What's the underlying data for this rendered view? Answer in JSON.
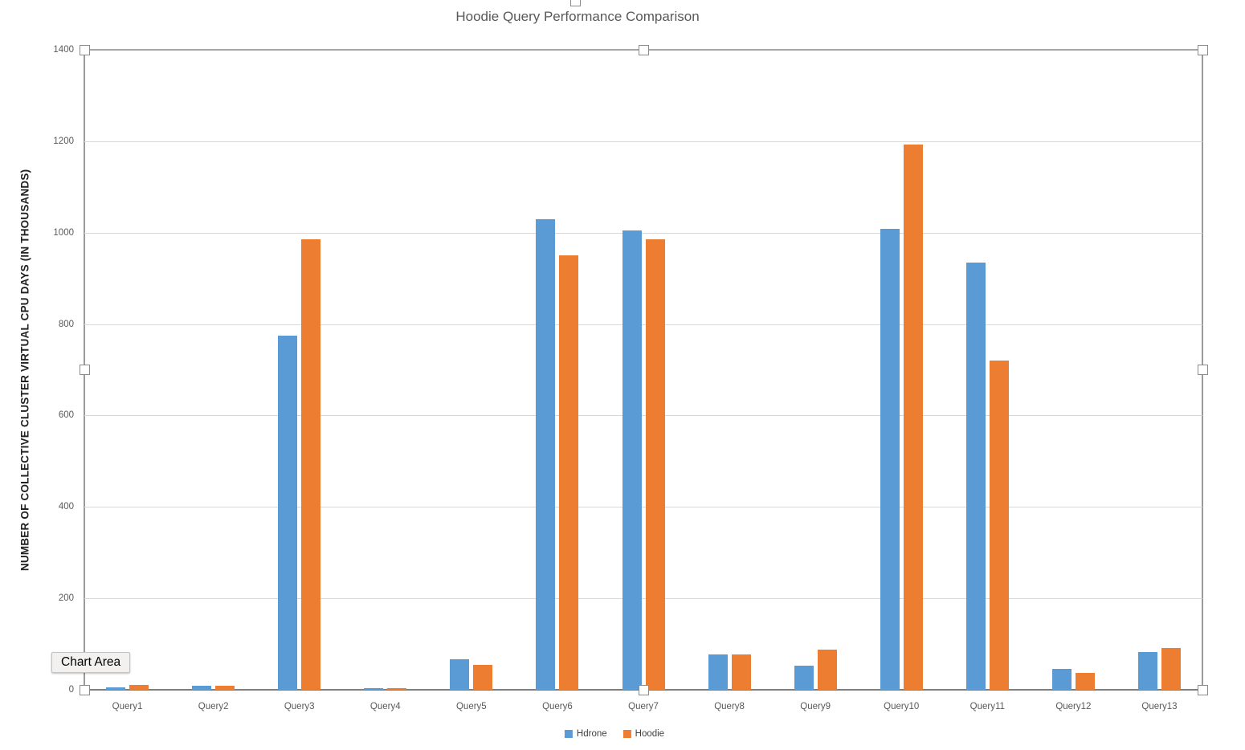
{
  "chart_title": "Hoodie Query Performance Comparison",
  "tooltip_text": "Chart Area",
  "chart_data": {
    "type": "bar",
    "title": "Hoodie Query Performance Comparison",
    "xlabel": "",
    "ylabel": "NUMBER OF COLLECTIVE CLUSTER VIRTUAL CPU DAYS (IN THOUSANDS)",
    "categories": [
      "Query1",
      "Query2",
      "Query3",
      "Query4",
      "Query5",
      "Query6",
      "Query7",
      "Query8",
      "Query9",
      "Query10",
      "Query11",
      "Query12",
      "Query13"
    ],
    "series": [
      {
        "name": "Hdrone",
        "color": "#5B9BD5",
        "values": [
          6,
          9,
          775,
          4,
          66,
          1030,
          1005,
          77,
          52,
          1008,
          935,
          45,
          83
        ]
      },
      {
        "name": "Hoodie",
        "color": "#ED7D31",
        "values": [
          10,
          9,
          985,
          4,
          54,
          950,
          985,
          77,
          88,
          1193,
          720,
          37,
          92
        ]
      }
    ],
    "ylim": [
      0,
      1400
    ],
    "yticks": [
      0,
      200,
      400,
      600,
      800,
      1000,
      1200,
      1400
    ],
    "grid": true,
    "legend_position": "bottom"
  }
}
